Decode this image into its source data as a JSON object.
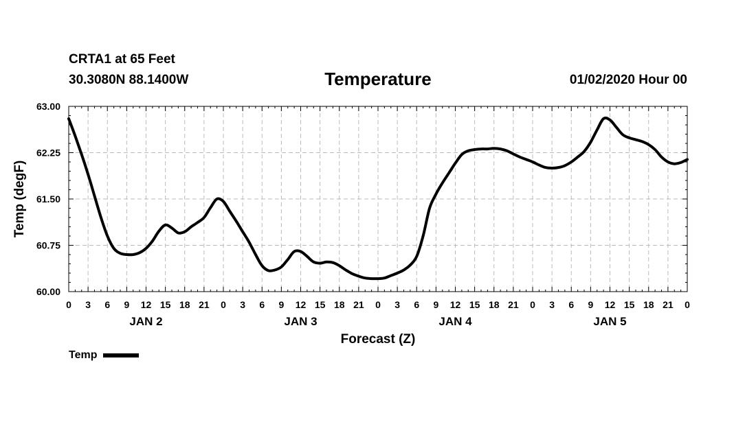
{
  "header": {
    "station": "CRTA1 at 65 Feet",
    "coords": "30.3080N 88.1400W",
    "datetime": "01/02/2020 Hour 00"
  },
  "chart_data": {
    "type": "line",
    "title": "Temperature",
    "xlabel": "Forecast (Z)",
    "ylabel": "Temp (degF)",
    "ylim": [
      60.0,
      63.0
    ],
    "xlim": [
      0,
      96
    ],
    "y_ticks": [
      "60.00",
      "60.75",
      "61.50",
      "62.25",
      "63.00"
    ],
    "y_tick_values": [
      60.0,
      60.75,
      61.5,
      62.25,
      63.0
    ],
    "x_ticks": [
      "0",
      "3",
      "6",
      "9",
      "12",
      "15",
      "18",
      "21",
      "0",
      "3",
      "6",
      "9",
      "12",
      "15",
      "18",
      "21",
      "0",
      "3",
      "6",
      "9",
      "12",
      "15",
      "18",
      "21",
      "0",
      "3",
      "6",
      "9",
      "12",
      "15",
      "18",
      "21",
      "0"
    ],
    "day_labels": [
      {
        "label": "JAN 2",
        "hour": 12
      },
      {
        "label": "JAN 3",
        "hour": 36
      },
      {
        "label": "JAN 4",
        "hour": 60
      },
      {
        "label": "JAN 5",
        "hour": 84
      }
    ],
    "grid": true,
    "legend_position": "bottom-left",
    "series": [
      {
        "name": "Temp",
        "color": "#000000",
        "x": [
          0,
          1,
          2,
          3,
          4,
          5,
          6,
          7,
          8,
          9,
          10,
          11,
          12,
          13,
          14,
          15,
          16,
          17,
          18,
          19,
          20,
          21,
          22,
          23,
          24,
          25,
          26,
          27,
          28,
          29,
          30,
          31,
          32,
          33,
          34,
          35,
          36,
          37,
          38,
          39,
          40,
          41,
          42,
          43,
          44,
          45,
          46,
          47,
          48,
          49,
          50,
          51,
          52,
          53,
          54,
          55,
          56,
          57,
          58,
          59,
          60,
          61,
          62,
          63,
          64,
          65,
          66,
          67,
          68,
          69,
          70,
          71,
          72,
          73,
          74,
          75,
          76,
          77,
          78,
          79,
          80,
          81,
          82,
          83,
          84,
          85,
          86,
          87,
          88,
          89,
          90,
          91,
          92,
          93,
          94,
          95,
          96
        ],
        "values": [
          62.8,
          62.52,
          62.22,
          61.9,
          61.55,
          61.2,
          60.9,
          60.7,
          60.62,
          60.6,
          60.6,
          60.63,
          60.7,
          60.82,
          60.98,
          61.08,
          61.03,
          60.95,
          60.97,
          61.05,
          61.12,
          61.2,
          61.36,
          61.5,
          61.46,
          61.3,
          61.14,
          60.97,
          60.8,
          60.6,
          60.42,
          60.34,
          60.35,
          60.4,
          60.52,
          60.65,
          60.65,
          60.57,
          60.48,
          60.46,
          60.48,
          60.47,
          60.42,
          60.35,
          60.29,
          60.25,
          60.22,
          60.21,
          60.21,
          60.22,
          60.26,
          60.3,
          60.35,
          60.43,
          60.57,
          60.9,
          61.35,
          61.58,
          61.76,
          61.92,
          62.08,
          62.22,
          62.28,
          62.3,
          62.31,
          62.31,
          62.32,
          62.31,
          62.28,
          62.23,
          62.18,
          62.14,
          62.1,
          62.05,
          62.01,
          62.0,
          62.01,
          62.04,
          62.1,
          62.18,
          62.27,
          62.42,
          62.62,
          62.8,
          62.78,
          62.66,
          62.54,
          62.49,
          62.46,
          62.43,
          62.38,
          62.3,
          62.18,
          62.1,
          62.07,
          62.09,
          62.14
        ]
      }
    ]
  }
}
